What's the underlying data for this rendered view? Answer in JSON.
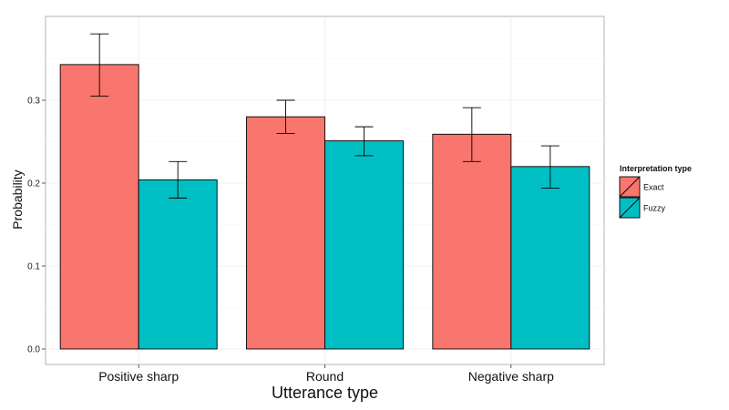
{
  "chart_data": {
    "type": "bar",
    "title": "",
    "xlabel": "Utterance type",
    "ylabel": "Probability",
    "categories": [
      "Positive sharp",
      "Round",
      "Negative sharp"
    ],
    "series": [
      {
        "name": "Exact",
        "color": "#F8766D",
        "values": [
          0.343,
          0.28,
          0.259
        ],
        "err_low": [
          0.305,
          0.26,
          0.226
        ],
        "err_high": [
          0.38,
          0.3,
          0.291
        ]
      },
      {
        "name": "Fuzzy",
        "color": "#00BFC4",
        "values": [
          0.204,
          0.251,
          0.22
        ],
        "err_low": [
          0.182,
          0.233,
          0.194
        ],
        "err_high": [
          0.226,
          0.268,
          0.245
        ]
      }
    ],
    "ylim": [
      0,
      0.4
    ],
    "yticks": [
      "0.0",
      "0.1",
      "0.2",
      "0.3"
    ],
    "grid": true,
    "legend": {
      "title": "Interpretation type",
      "placement": "right"
    }
  }
}
